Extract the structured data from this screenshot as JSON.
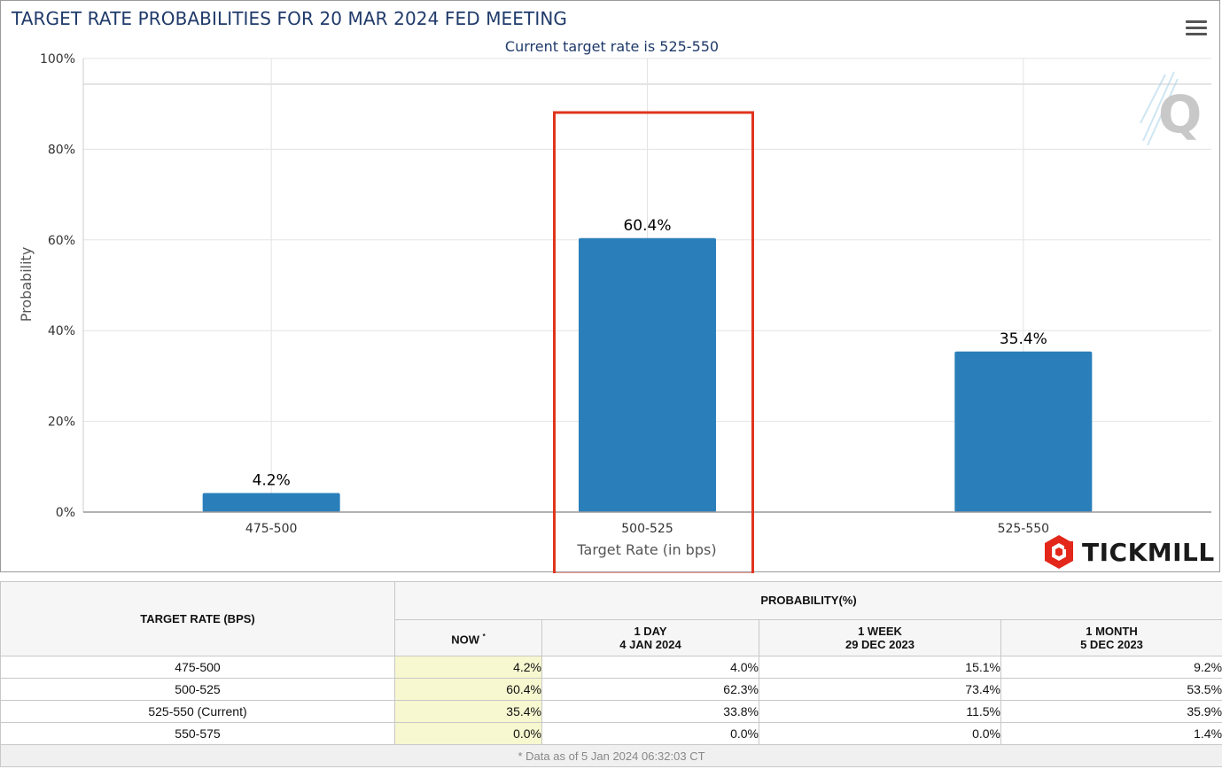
{
  "chart": {
    "title": "TARGET RATE PROBABILITIES FOR 20 MAR 2024 FED MEETING",
    "subtitle": "Current target rate is 525-550",
    "brand": "TICKMILL",
    "watermark_letter": "Q",
    "colors": {
      "bar": "#2a7fba",
      "highlight_box": "#e0341f",
      "title": "#1f3a6a"
    }
  },
  "chart_data": {
    "type": "bar",
    "title": "TARGET RATE PROBABILITIES FOR 20 MAR 2024 FED MEETING",
    "subtitle": "Current target rate is 525-550",
    "categories": [
      "475-500",
      "500-525",
      "525-550"
    ],
    "values": [
      4.2,
      60.4,
      35.4
    ],
    "data_labels": [
      "4.2%",
      "60.4%",
      "35.4%"
    ],
    "xlabel": "Target Rate (in bps)",
    "ylabel": "Probability",
    "ylim": [
      0,
      100
    ],
    "yticks": [
      0,
      20,
      40,
      60,
      80,
      100
    ],
    "ytick_labels": [
      "0%",
      "20%",
      "40%",
      "60%",
      "80%",
      "100%"
    ],
    "grid": true,
    "highlighted_category": "500-525"
  },
  "table": {
    "header_rate": "TARGET RATE (BPS)",
    "header_prob": "PROBABILITY(%)",
    "columns": [
      {
        "line1": "NOW",
        "sup": "*",
        "line2": ""
      },
      {
        "line1": "1 DAY",
        "line2": "4 JAN 2024"
      },
      {
        "line1": "1 WEEK",
        "line2": "29 DEC 2023"
      },
      {
        "line1": "1 MONTH",
        "line2": "5 DEC 2023"
      }
    ],
    "rows": [
      {
        "rate": "475-500",
        "values": [
          "4.2%",
          "4.0%",
          "15.1%",
          "9.2%"
        ]
      },
      {
        "rate": "500-525",
        "values": [
          "60.4%",
          "62.3%",
          "73.4%",
          "53.5%"
        ]
      },
      {
        "rate": "525-550 (Current)",
        "values": [
          "35.4%",
          "33.8%",
          "11.5%",
          "35.9%"
        ]
      },
      {
        "rate": "550-575",
        "values": [
          "0.0%",
          "0.0%",
          "0.0%",
          "1.4%"
        ]
      }
    ],
    "footnote": "* Data as of 5 Jan 2024 06:32:03 CT"
  }
}
